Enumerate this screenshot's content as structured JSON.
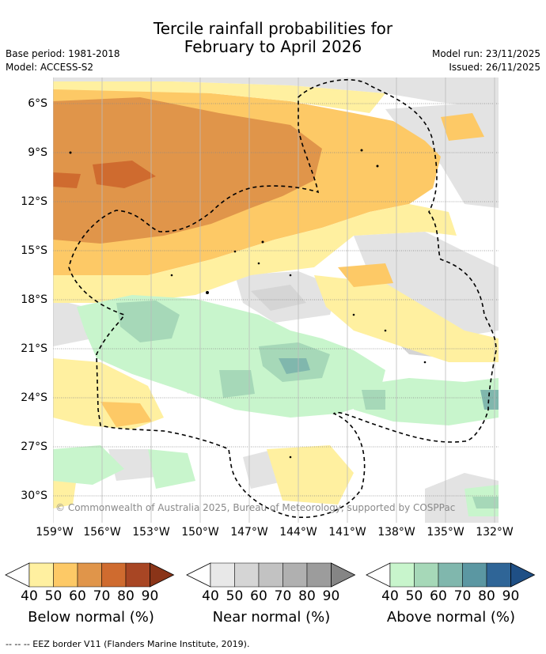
{
  "title": {
    "line1": "Tercile rainfall probabilities for",
    "line2": "February to April 2026"
  },
  "meta": {
    "base_period": "Base period: 1981-2018",
    "model": "Model: ACCESS-S2",
    "model_run": "Model run: 23/11/2025",
    "issued": "Issued: 26/11/2025"
  },
  "map": {
    "lat_labels": [
      "6°S",
      "9°S",
      "12°S",
      "15°S",
      "18°S",
      "21°S",
      "24°S",
      "27°S",
      "30°S"
    ],
    "lon_labels": [
      "159°W",
      "156°W",
      "153°W",
      "150°W",
      "147°W",
      "144°W",
      "141°W",
      "138°W",
      "135°W",
      "132°W"
    ],
    "copyright": "© Commonwealth of Australia 2025, Bureau of Meteorology, supported by COSPPac"
  },
  "legend": {
    "below": {
      "title": "Below normal (%)",
      "ticks": [
        "40",
        "50",
        "60",
        "70",
        "80",
        "90"
      ],
      "colors": [
        "#fff0a0",
        "#fdc966",
        "#e0954a",
        "#cf6b2f",
        "#a84624",
        "#8a3418"
      ]
    },
    "near": {
      "title": "Near normal (%)",
      "ticks": [
        "40",
        "50",
        "60",
        "70",
        "80",
        "90"
      ],
      "colors": [
        "#e8e8e8",
        "#d5d5d5",
        "#c2c2c2",
        "#b0b0b0",
        "#9c9c9c",
        "#858585"
      ]
    },
    "above": {
      "title": "Above normal (%)",
      "ticks": [
        "40",
        "50",
        "60",
        "70",
        "80",
        "90"
      ],
      "colors": [
        "#c8f5cc",
        "#a6d8b8",
        "#80b7ad",
        "#5b97a2",
        "#2f6597",
        "#1f4f85"
      ]
    },
    "eez": "-- -- -- EEZ border V11 (Flanders Marine Institute, 2019)."
  }
}
